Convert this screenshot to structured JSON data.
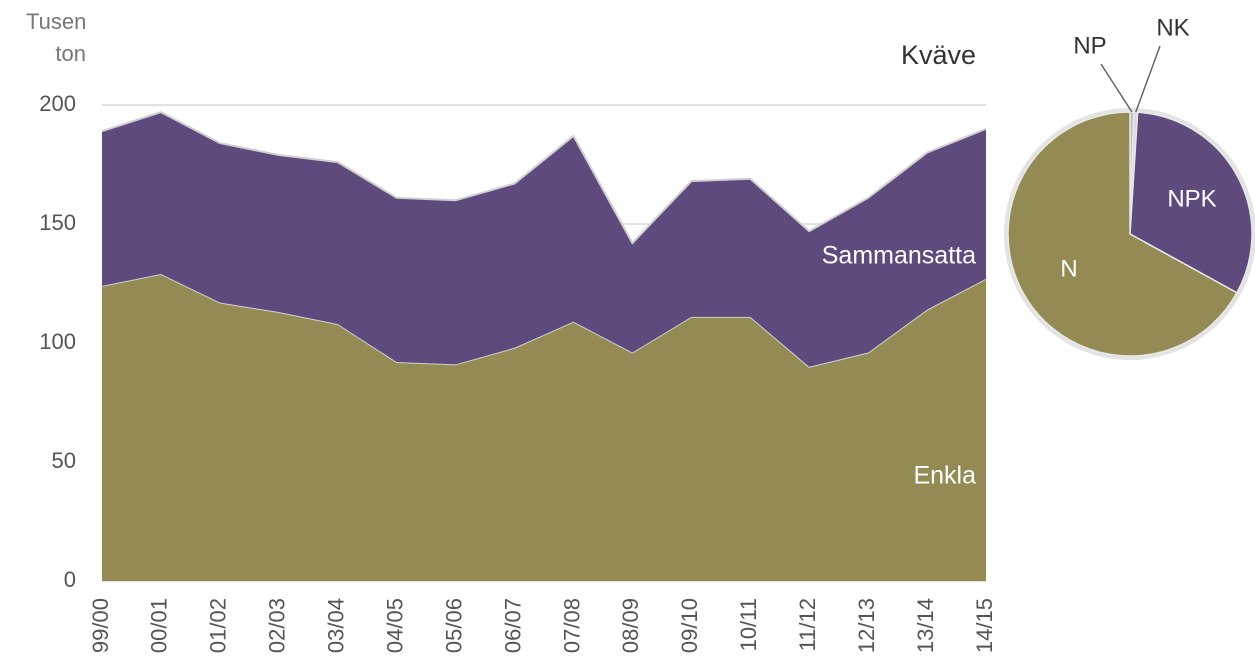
{
  "chart_data": [
    {
      "type": "stacked_area",
      "title": "Kväve",
      "y_label": "Tusen ton",
      "categories": [
        "99/00",
        "00/01",
        "01/02",
        "02/03",
        "03/04",
        "04/05",
        "05/06",
        "06/07",
        "07/08",
        "08/09",
        "09/10",
        "10/11",
        "11/12",
        "12/13",
        "13/14",
        "14/15"
      ],
      "series": [
        {
          "name": "Enkla",
          "color": "#948a54",
          "values": [
            124,
            129,
            117,
            113,
            108,
            92,
            91,
            98,
            109,
            96,
            111,
            111,
            90,
            96,
            114,
            127
          ]
        },
        {
          "name": "Sammansatta",
          "color": "#5e4a7c",
          "values": [
            65,
            68,
            67,
            66,
            68,
            69,
            69,
            69,
            78,
            46,
            57,
            58,
            57,
            65,
            66,
            63
          ]
        }
      ],
      "ylim": [
        0,
        200
      ],
      "yticks": [
        0,
        50,
        100,
        150,
        200
      ],
      "grid": true
    },
    {
      "type": "pie",
      "categories": [
        "NP",
        "NK",
        "NPK",
        "N"
      ],
      "values": [
        0.5,
        0.5,
        32,
        67
      ],
      "colors": [
        "#bfbfbf",
        "#d9d9d9",
        "#5e4a7c",
        "#948a54"
      ]
    }
  ]
}
